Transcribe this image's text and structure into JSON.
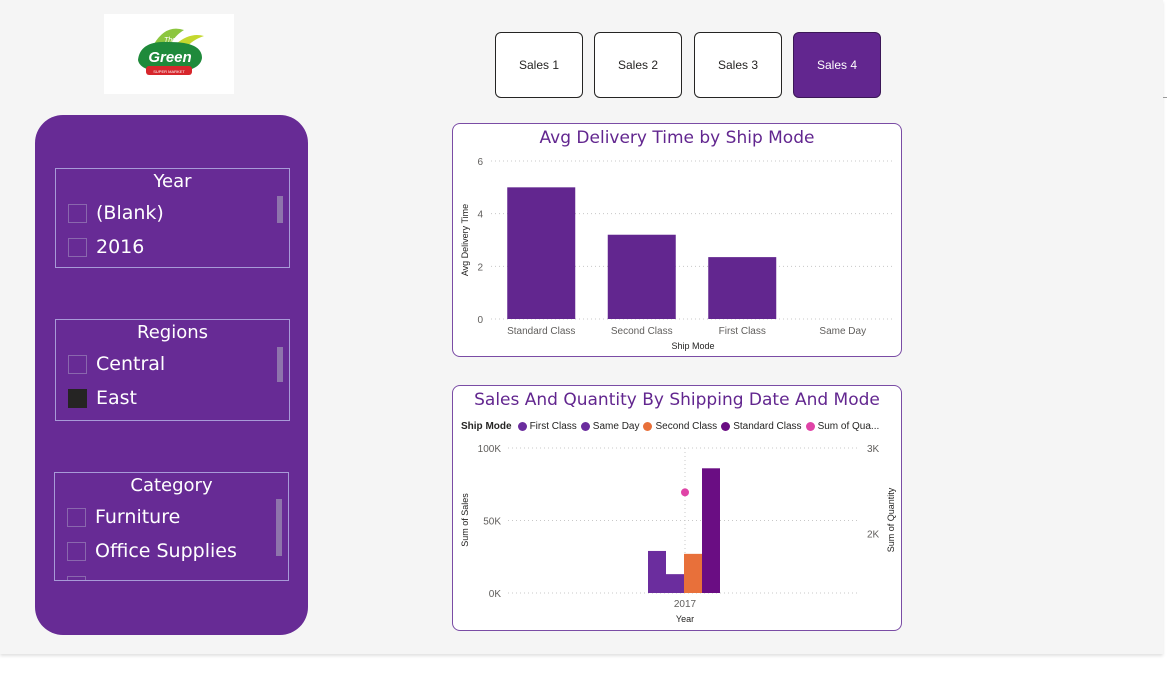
{
  "logo": {
    "main": "Green",
    "top": "The",
    "sub": "SUPER MARKET"
  },
  "nav": [
    {
      "label": "Sales 1",
      "active": false
    },
    {
      "label": "Sales 2",
      "active": false
    },
    {
      "label": "Sales 3",
      "active": false
    },
    {
      "label": "Sales 4",
      "active": true
    }
  ],
  "slicers": {
    "year": {
      "title": "Year",
      "items": [
        {
          "label": "(Blank)",
          "checked": false
        },
        {
          "label": "2016",
          "checked": false
        }
      ]
    },
    "regions": {
      "title": "Regions",
      "items": [
        {
          "label": "Central",
          "checked": false
        },
        {
          "label": "East",
          "checked": true
        }
      ]
    },
    "category": {
      "title": "Category",
      "items": [
        {
          "label": "Furniture",
          "checked": false
        },
        {
          "label": "Office Supplies",
          "checked": false
        }
      ]
    }
  },
  "colors": {
    "accent": "#62268f",
    "panel": "#672b95",
    "first_class": "#6b2d9e",
    "same_day": "#6b2d9e",
    "second_class": "#e8703a",
    "standard_class": "#6a0d83",
    "sum_of_quantity": "#e044a7"
  },
  "chart_data": [
    {
      "type": "bar",
      "title": "Avg Delivery Time by Ship Mode",
      "xlabel": "Ship Mode",
      "ylabel": "Avg Delivery Time",
      "categories": [
        "Standard Class",
        "Second Class",
        "First Class",
        "Same Day"
      ],
      "values": [
        5.0,
        3.2,
        2.35,
        0
      ],
      "ylim": [
        0,
        6
      ],
      "yticks": [
        "0",
        "2",
        "4",
        "6"
      ],
      "grid": true
    },
    {
      "type": "bar",
      "title": "Sales And Quantity By Shipping Date And Mode",
      "legend_title": "Ship Mode",
      "legend_position": "top-left",
      "xlabel": "Year",
      "ylabel": "Sum of Sales",
      "y2label": "Sum of Quantity",
      "categories": [
        "2017"
      ],
      "series": [
        {
          "name": "First Class",
          "values": [
            29000
          ],
          "color": "#6b2d9e"
        },
        {
          "name": "Same Day",
          "values": [
            13000
          ],
          "color": "#6b2d9e"
        },
        {
          "name": "Second Class",
          "values": [
            27000
          ],
          "color": "#e8703a"
        },
        {
          "name": "Standard Class",
          "values": [
            86000
          ],
          "color": "#6a0d83"
        }
      ],
      "line_series": {
        "name": "Sum of Qua...",
        "values": [
          2480
        ],
        "color": "#e044a7",
        "axis": "right"
      },
      "ylim": [
        0,
        100000
      ],
      "y2lim": [
        1300,
        3000
      ],
      "yticks": [
        "0K",
        "50K",
        "100K"
      ],
      "y2ticks": [
        "2K",
        "3K"
      ],
      "grid": true
    }
  ]
}
